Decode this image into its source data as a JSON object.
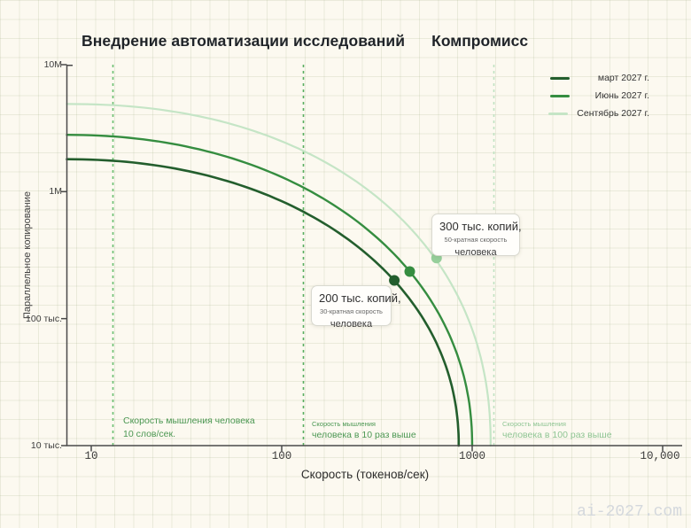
{
  "header": {
    "title": "Внедрение автоматизации исследований",
    "subtitle": "Компромисс"
  },
  "footer": {
    "watermark": "ai-2027.com"
  },
  "chart_data": {
    "type": "line",
    "title": "Внедрение автоматизации исследований — Компромисс",
    "xlabel": "Скорость (токенов/сек)",
    "ylabel": "Параллельное копирование",
    "x_scale": "log",
    "y_scale": "log",
    "xlim": [
      7.4,
      10000
    ],
    "ylim": [
      10000,
      10000000
    ],
    "grid": "graph-paper background",
    "legend_position": "top-right",
    "x_tick_values": [
      10,
      100,
      1000,
      10000
    ],
    "x_tick_labels": [
      "10",
      "100",
      "1000",
      "10,000"
    ],
    "y_tick_values": [
      10000000,
      1000000,
      100000,
      10000
    ],
    "y_tick_labels": [
      "10M",
      "1M",
      "100 тыс.",
      "10 тыс."
    ],
    "series": [
      {
        "name": "март 2027 г.",
        "color": "#235e2d",
        "marker_color": "#235e2d",
        "max_copies": 1800000,
        "max_speed": 850,
        "shape_exponent": 2.1,
        "stroke_width": 2.6,
        "marker": {
          "x": 390,
          "y": 200000
        }
      },
      {
        "name": "Июнь 2027 г.",
        "color": "#358d40",
        "marker_color": "#358d40",
        "max_copies": 2800000,
        "max_speed": 1000,
        "shape_exponent": 2.1,
        "stroke_width": 2.4,
        "marker": {
          "x": 470,
          "y": 235000
        }
      },
      {
        "name": "Сентябрь 2027 г.",
        "color": "#c5e5c6",
        "marker_color": "#96cf9b",
        "max_copies": 4900000,
        "max_speed": 1250,
        "shape_exponent": 2.2,
        "stroke_width": 2.2,
        "marker": {
          "x": 650,
          "y": 300000
        }
      }
    ],
    "reference_lines": [
      {
        "x": 13,
        "color": "#6abf70",
        "text_color": "#4b9752",
        "label_lines": [
          "Скорость мышления человека",
          "10 слов/сек."
        ]
      },
      {
        "x": 130,
        "color": "#58ae5f",
        "text_color": "#4b9752",
        "label_lines": [
          "Скорость мышления",
          "человека в 10 раз выше"
        ]
      },
      {
        "x": 1300,
        "color": "#bfe2c1",
        "text_color": "#8fc593",
        "label_lines": [
          "Скорость мышления",
          "человека в 100 раз выше"
        ]
      }
    ],
    "callouts": [
      {
        "lines": [
          "200 тыс. копий,",
          "30-кратная скорость",
          "человека"
        ],
        "points_to_series": "март 2027 г.",
        "x": 390,
        "y": 200000
      },
      {
        "lines": [
          "300 тыс. копий,",
          "50-кратная скорость",
          "человека"
        ],
        "points_to_series": "Сентябрь 2027 г.",
        "x": 650,
        "y": 300000
      }
    ]
  }
}
